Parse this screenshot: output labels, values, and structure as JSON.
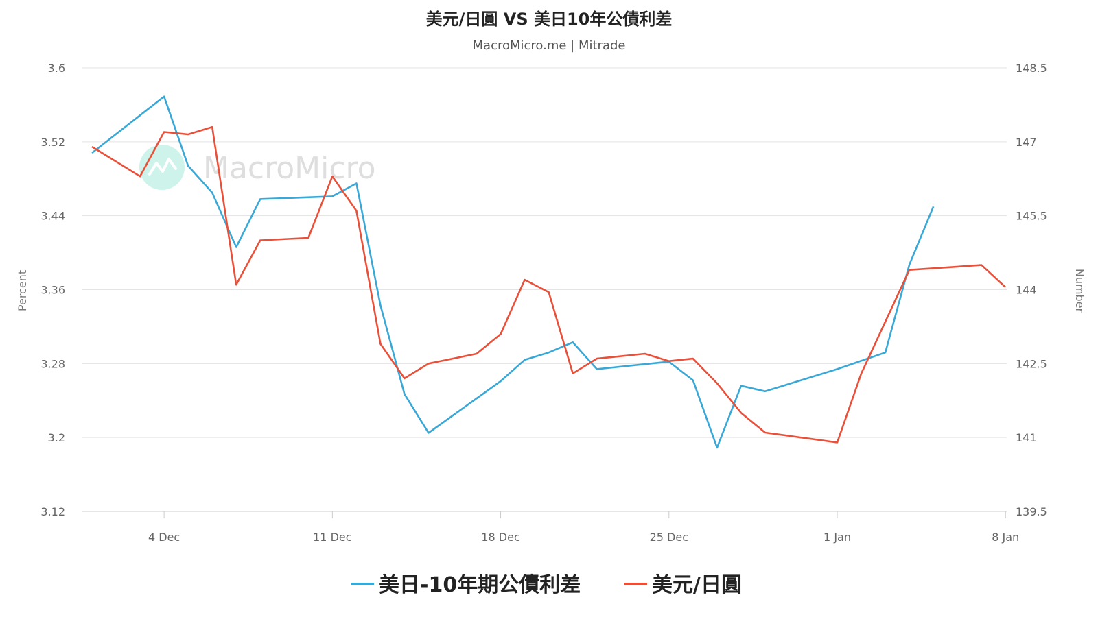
{
  "chart_data": {
    "type": "line",
    "title": "美元/日圓 VS 美日10年公債利差",
    "subtitle": "MacroMicro.me | Mitrade",
    "watermark": "MacroMicro",
    "y_left": {
      "label": "Percent",
      "range": [
        3.12,
        3.6
      ],
      "ticks": [
        "3.12",
        "3.2",
        "3.28",
        "3.36",
        "3.44",
        "3.52",
        "3.6"
      ]
    },
    "y_right": {
      "label": "Number",
      "range": [
        139.5,
        148.5
      ],
      "ticks": [
        "139.5",
        "141",
        "142.5",
        "144",
        "145.5",
        "147",
        "148.5"
      ]
    },
    "x_ticks": [
      {
        "label": "4 Dec",
        "day": 4
      },
      {
        "label": "11 Dec",
        "day": 11
      },
      {
        "label": "18 Dec",
        "day": 18
      },
      {
        "label": "25 Dec",
        "day": 25
      },
      {
        "label": "1 Jan",
        "day": 32
      },
      {
        "label": "8 Jan",
        "day": 39
      }
    ],
    "x_range": [
      0.6,
      39.05
    ],
    "grid": true,
    "legend_position": "bottom",
    "series": [
      {
        "name": "美日-10年期公債利差",
        "axis": "left",
        "color": "#3aa8d6",
        "points": [
          [
            1,
            3.508
          ],
          [
            4,
            3.569
          ],
          [
            5,
            3.494
          ],
          [
            6,
            3.465
          ],
          [
            7,
            3.406
          ],
          [
            8,
            3.458
          ],
          [
            11,
            3.461
          ],
          [
            12,
            3.475
          ],
          [
            13,
            3.343
          ],
          [
            14,
            3.247
          ],
          [
            15,
            3.205
          ],
          [
            18,
            3.261
          ],
          [
            19,
            3.284
          ],
          [
            20,
            3.292
          ],
          [
            21,
            3.303
          ],
          [
            22,
            3.274
          ],
          [
            25,
            3.282
          ],
          [
            26,
            3.262
          ],
          [
            27,
            3.189
          ],
          [
            28,
            3.256
          ],
          [
            29,
            3.25
          ],
          [
            32,
            3.274
          ],
          [
            34,
            3.292
          ],
          [
            35,
            3.387
          ],
          [
            36,
            3.45
          ]
        ]
      },
      {
        "name": "美元/日圓",
        "axis": "right",
        "color": "#e8503a",
        "points": [
          [
            1,
            146.9
          ],
          [
            3,
            146.3
          ],
          [
            4,
            147.2
          ],
          [
            5,
            147.15
          ],
          [
            6,
            147.3
          ],
          [
            7,
            144.1
          ],
          [
            8,
            145.0
          ],
          [
            10,
            145.05
          ],
          [
            11,
            146.3
          ],
          [
            12,
            145.6
          ],
          [
            13,
            142.9
          ],
          [
            14,
            142.2
          ],
          [
            15,
            142.5
          ],
          [
            17,
            142.7
          ],
          [
            18,
            143.1
          ],
          [
            19,
            144.2
          ],
          [
            20,
            143.95
          ],
          [
            21,
            142.3
          ],
          [
            22,
            142.6
          ],
          [
            24,
            142.7
          ],
          [
            25,
            142.55
          ],
          [
            26,
            142.6
          ],
          [
            27,
            142.1
          ],
          [
            28,
            141.5
          ],
          [
            29,
            141.1
          ],
          [
            32,
            140.9
          ],
          [
            33,
            142.3
          ],
          [
            35,
            144.4
          ],
          [
            38,
            144.5
          ],
          [
            39,
            144.05
          ]
        ]
      }
    ]
  }
}
